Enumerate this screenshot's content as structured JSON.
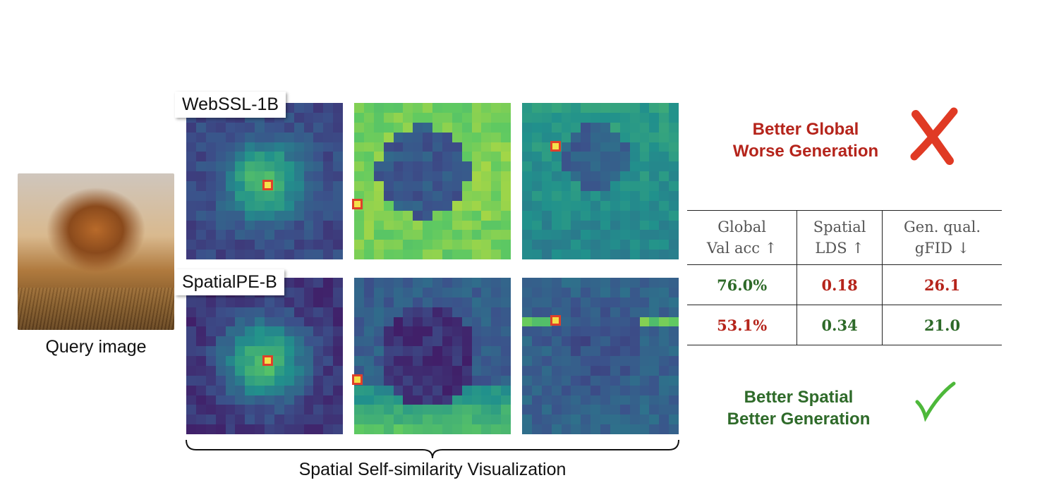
{
  "query": {
    "label": "Query image"
  },
  "models": [
    {
      "name": "WebSSL-1B"
    },
    {
      "name": "SpatialPE-B"
    }
  ],
  "caption": "Spatial Self-similarity Visualization",
  "callouts": {
    "bad": {
      "line1": "Better Global",
      "line2": "Worse Generation",
      "icon": "cross-icon",
      "color": "#b5241b"
    },
    "good": {
      "line1": "Better Spatial",
      "line2": "Better Generation",
      "icon": "check-icon",
      "color": "#2e6a29"
    }
  },
  "table": {
    "headers": [
      {
        "line1": "Global",
        "line2": "Val acc ↑"
      },
      {
        "line1": "Spatial",
        "line2": "LDS ↑"
      },
      {
        "line1": "Gen. qual.",
        "line2": "gFID ↓"
      }
    ],
    "rows": [
      {
        "cells": [
          "76.0%",
          "0.18",
          "26.1"
        ],
        "colors": [
          "#2e6a29",
          "#b5241b",
          "#b5241b"
        ]
      },
      {
        "cells": [
          "53.1%",
          "0.34",
          "21.0"
        ],
        "colors": [
          "#b5241b",
          "#2e6a29",
          "#2e6a29"
        ]
      }
    ]
  },
  "colormap": "viridis"
}
